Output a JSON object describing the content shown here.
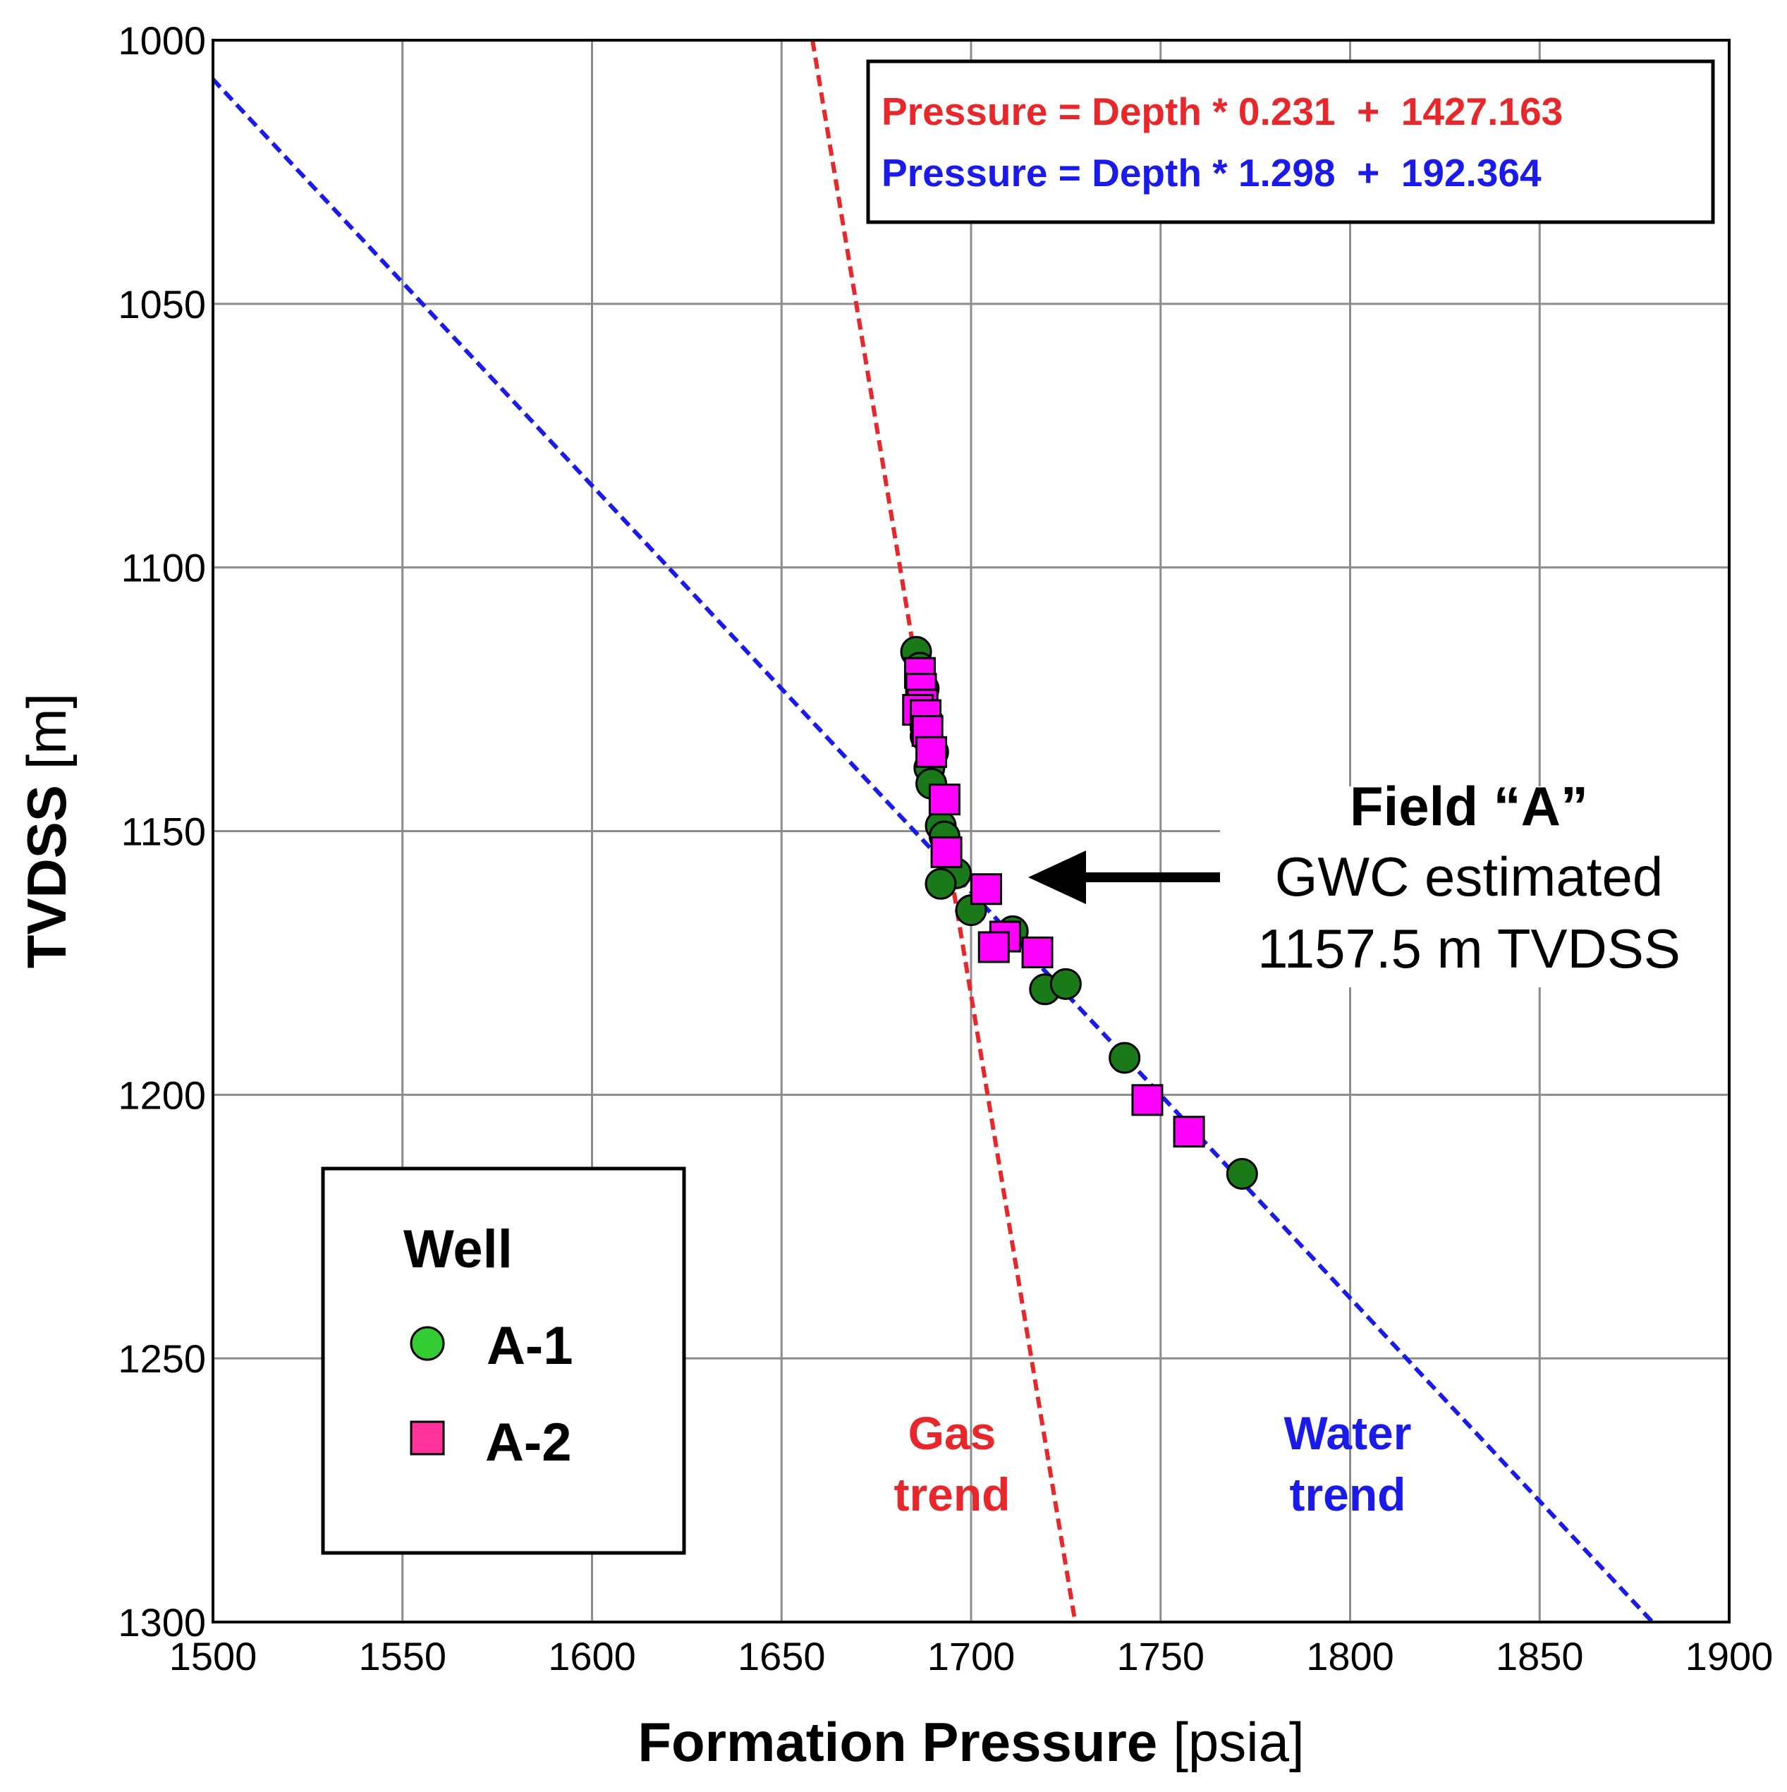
{
  "chart_data": {
    "type": "scatter",
    "xlabel_bold": "Formation Pressure",
    "xlabel_unit": "[psia]",
    "ylabel_bold": "TVDSS",
    "ylabel_unit": "[m]",
    "xlim": [
      1500,
      1900
    ],
    "ylim": [
      1000,
      1300
    ],
    "y_inverted": true,
    "grid": true,
    "xticks": [
      1500,
      1550,
      1600,
      1650,
      1700,
      1750,
      1800,
      1850,
      1900
    ],
    "yticks": [
      1000,
      1050,
      1100,
      1150,
      1200,
      1250,
      1300
    ],
    "trend_lines": [
      {
        "name": "Gas trend",
        "label_line1": "Gas",
        "label_line2": "trend",
        "color": "#e8272a",
        "slope": 0.231,
        "intercept": 1427.163,
        "equation_label": "Pressure = Depth * 0.231  +  1427.163"
      },
      {
        "name": "Water trend",
        "label_line1": "Water",
        "label_line2": "trend",
        "color": "#1a1aea",
        "slope": 1.298,
        "intercept": 192.364,
        "equation_label": "Pressure = Depth * 1.298  +  192.364"
      }
    ],
    "series": [
      {
        "name": "A-1",
        "marker": "circle",
        "color": "#1a7a1a",
        "legend_color": "#33cc33",
        "points": [
          {
            "x": 1685.5,
            "y": 1116
          },
          {
            "x": 1686.5,
            "y": 1119
          },
          {
            "x": 1687.5,
            "y": 1123
          },
          {
            "x": 1687.0,
            "y": 1126
          },
          {
            "x": 1688.5,
            "y": 1129
          },
          {
            "x": 1688.0,
            "y": 1132
          },
          {
            "x": 1690.0,
            "y": 1135
          },
          {
            "x": 1689.0,
            "y": 1138
          },
          {
            "x": 1689.5,
            "y": 1141
          },
          {
            "x": 1692.0,
            "y": 1149
          },
          {
            "x": 1693.0,
            "y": 1151
          },
          {
            "x": 1696.0,
            "y": 1158
          },
          {
            "x": 1692.0,
            "y": 1160
          },
          {
            "x": 1700.0,
            "y": 1165
          },
          {
            "x": 1711.0,
            "y": 1169
          },
          {
            "x": 1719.5,
            "y": 1180
          },
          {
            "x": 1725.0,
            "y": 1179
          },
          {
            "x": 1740.5,
            "y": 1193
          },
          {
            "x": 1771.5,
            "y": 1215
          }
        ]
      },
      {
        "name": "A-2",
        "marker": "square",
        "color": "#ff00ff",
        "legend_color": "#ff3399",
        "points": [
          {
            "x": 1686.5,
            "y": 1120
          },
          {
            "x": 1686.8,
            "y": 1123
          },
          {
            "x": 1687.2,
            "y": 1126
          },
          {
            "x": 1686.0,
            "y": 1127
          },
          {
            "x": 1688.0,
            "y": 1128
          },
          {
            "x": 1688.5,
            "y": 1131
          },
          {
            "x": 1689.5,
            "y": 1135
          },
          {
            "x": 1693.0,
            "y": 1144
          },
          {
            "x": 1693.5,
            "y": 1154
          },
          {
            "x": 1704.0,
            "y": 1161
          },
          {
            "x": 1709.0,
            "y": 1170
          },
          {
            "x": 1706.0,
            "y": 1172
          },
          {
            "x": 1717.5,
            "y": 1173
          },
          {
            "x": 1746.5,
            "y": 1201
          },
          {
            "x": 1757.5,
            "y": 1207
          }
        ]
      }
    ],
    "annotation": {
      "title": "Field “A”",
      "line2": "GWC estimated",
      "line3": "1157.5 m TVDSS",
      "arrow_target": {
        "x": 1715,
        "y": 1157.5
      }
    },
    "legend": {
      "title": "Well",
      "position": "bottom-left"
    }
  }
}
